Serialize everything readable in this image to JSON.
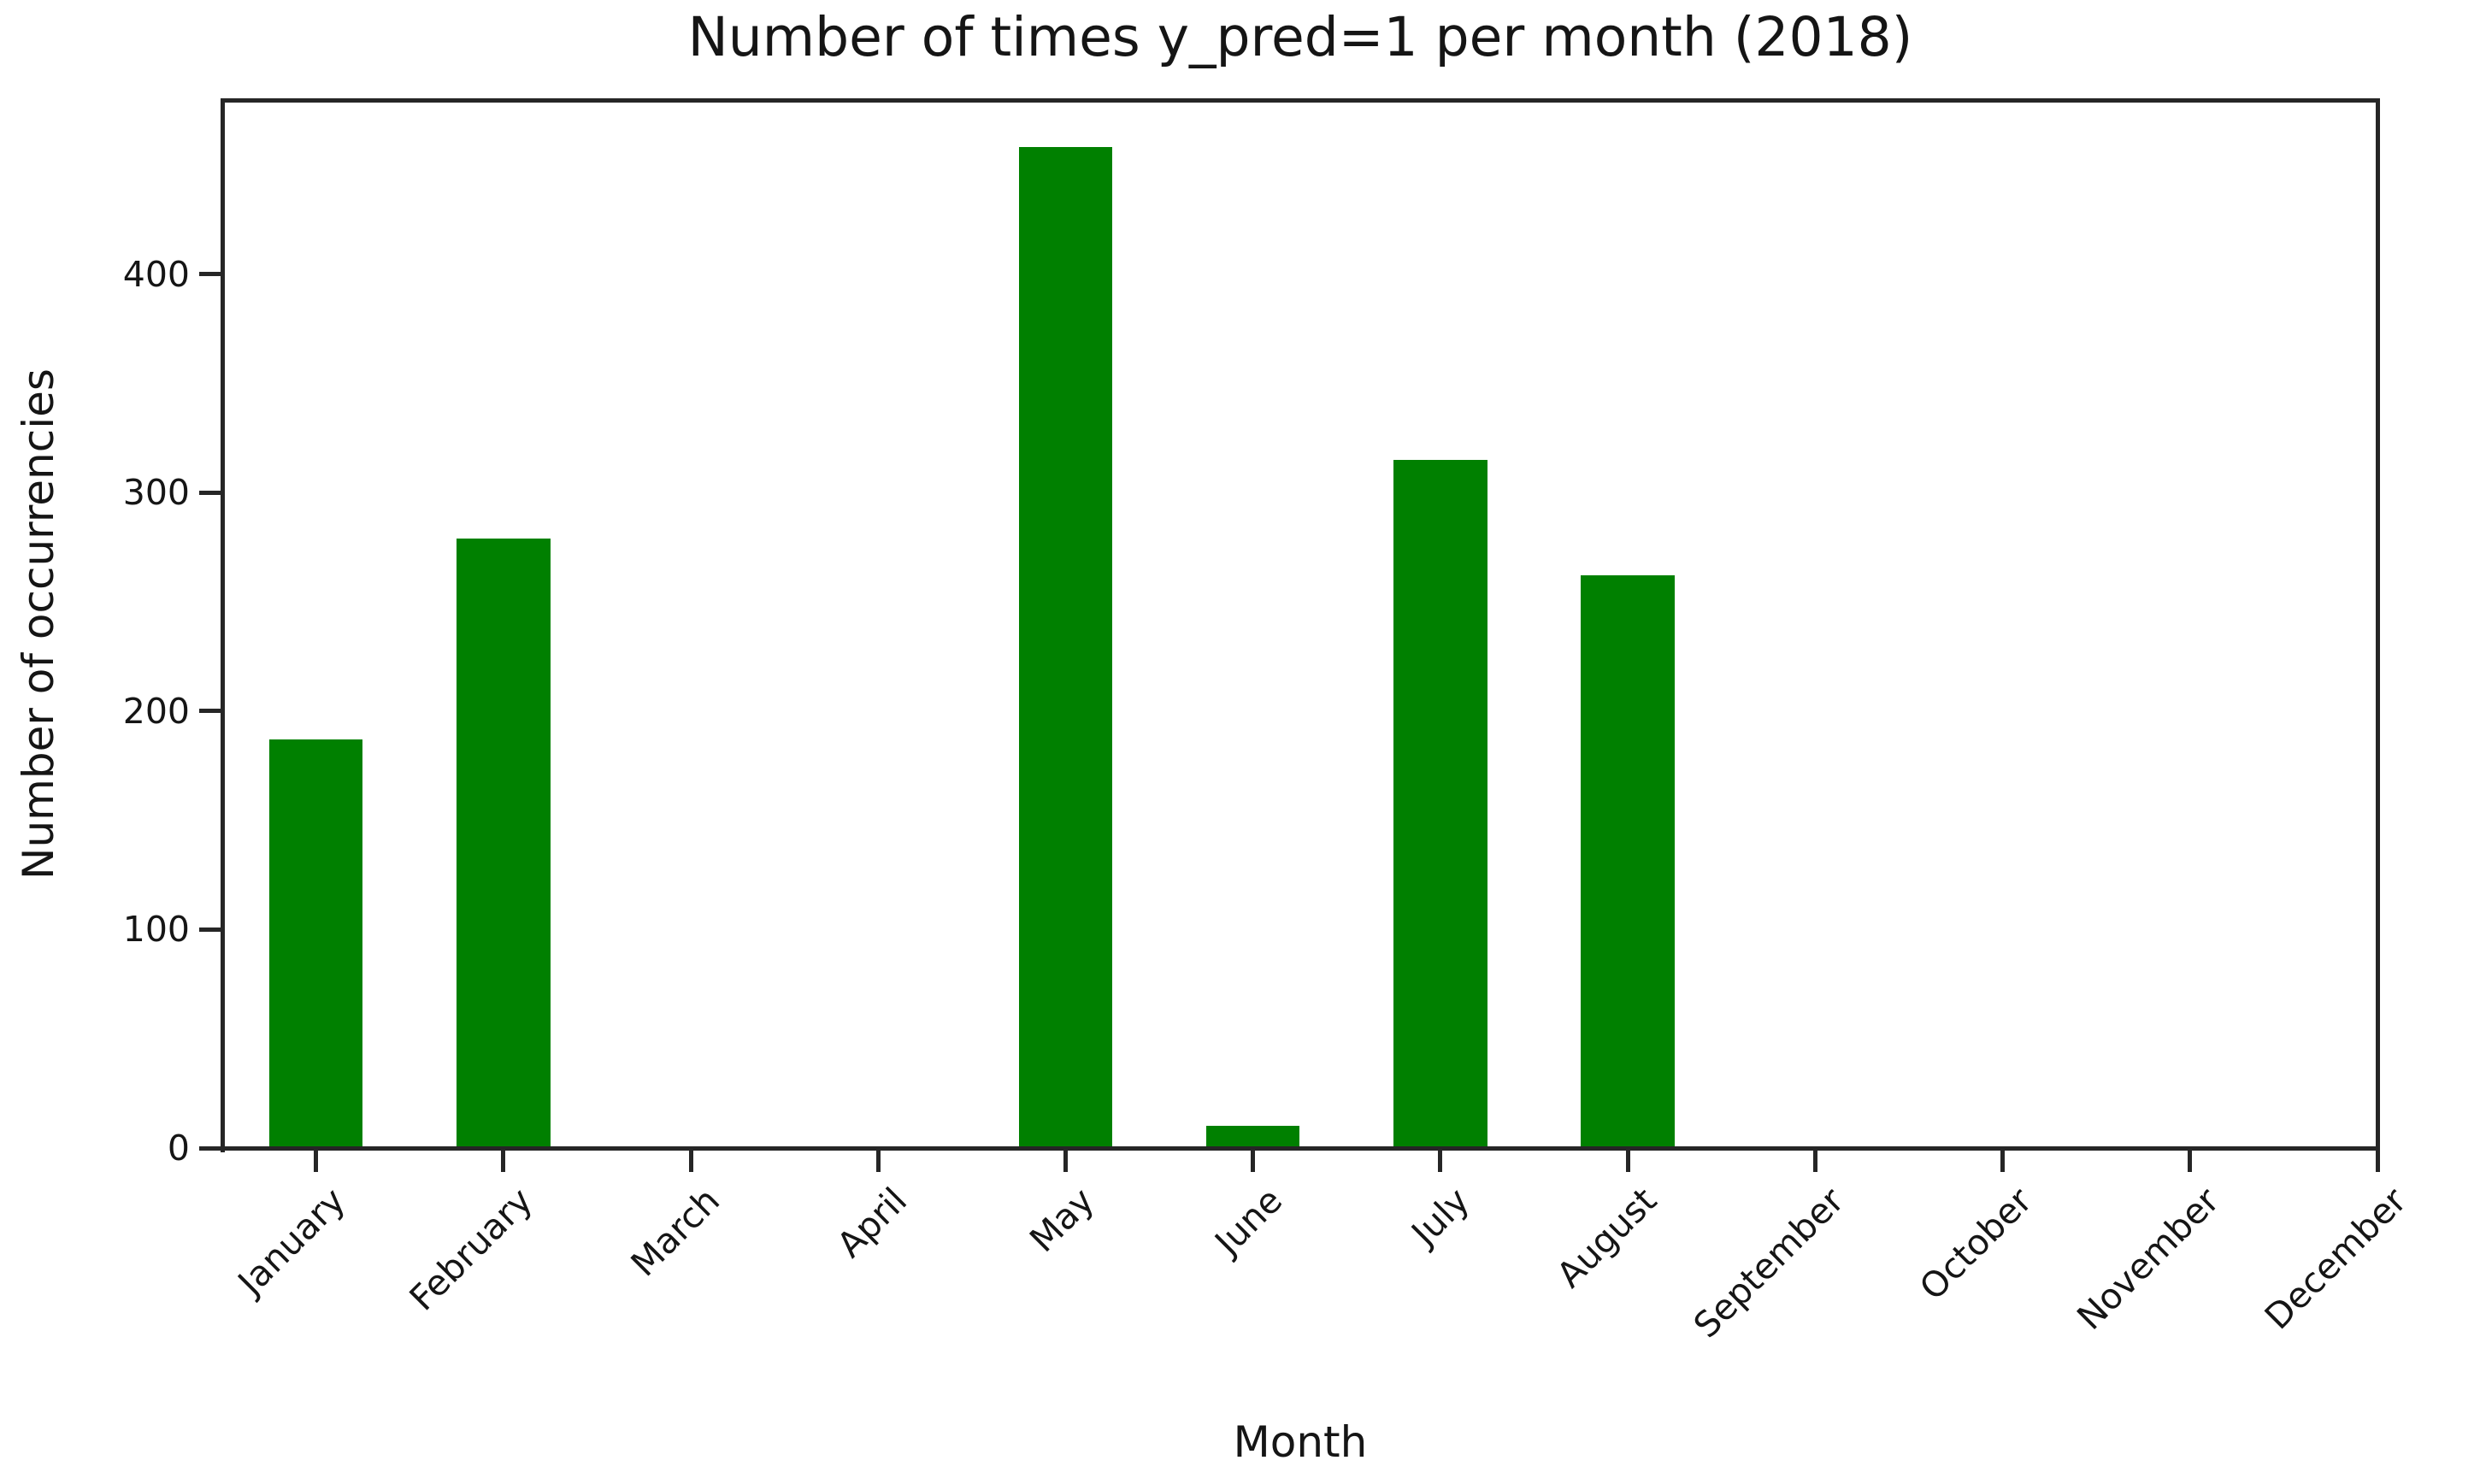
{
  "chart_data": {
    "type": "bar",
    "title": "Number of times y_pred=1 per month (2018)",
    "xlabel": "Month",
    "ylabel": "Number of occurrencies",
    "categories": [
      "January",
      "February",
      "March",
      "April",
      "May",
      "June",
      "July",
      "August",
      "September",
      "October",
      "November",
      "December"
    ],
    "values": [
      187,
      279,
      0,
      0,
      458,
      10,
      315,
      262,
      0,
      0,
      0,
      0
    ],
    "yticks": [
      0,
      100,
      200,
      300,
      400
    ],
    "ylim": [
      0,
      480
    ],
    "xlim": [
      -0.5,
      11.0
    ],
    "bar_width_fraction": 0.5,
    "x_tick_rotation_deg": 45,
    "grid": false,
    "legend": null,
    "bar_color": "#008000",
    "axis_color": "#262626",
    "text_color": "#151515",
    "background_color": "#ffffff"
  }
}
